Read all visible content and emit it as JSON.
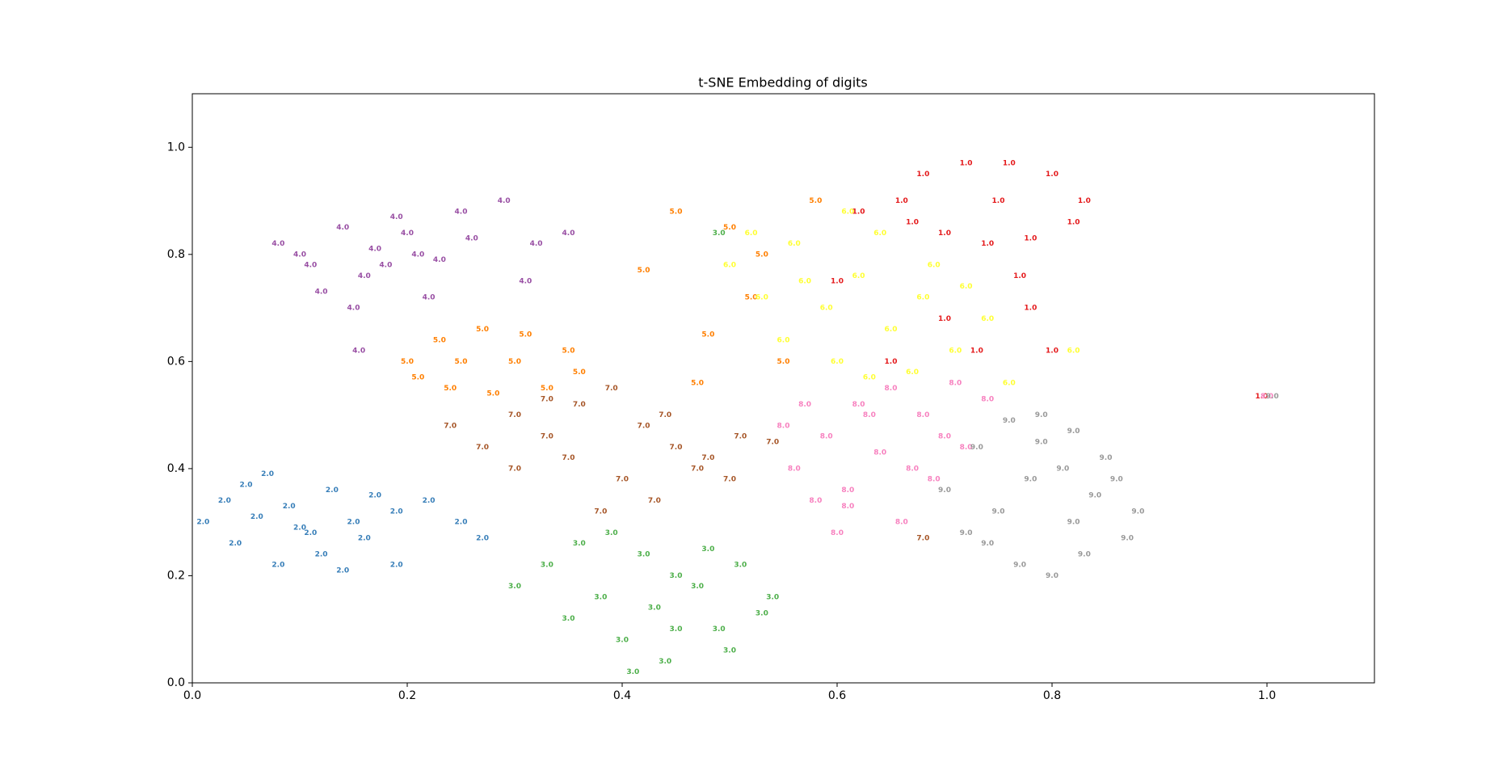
{
  "chart_data": {
    "type": "scatter",
    "title": "t-SNE Embedding of digits",
    "xlim": [
      0,
      1.1
    ],
    "ylim": [
      0,
      1.1
    ],
    "xticks": [
      {
        "value": 0,
        "label": "0.0"
      },
      {
        "value": 0.2,
        "label": "0.2"
      },
      {
        "value": 0.4,
        "label": "0.4"
      },
      {
        "value": 0.6,
        "label": "0.6"
      },
      {
        "value": 0.8,
        "label": "0.8"
      },
      {
        "value": 1,
        "label": "1.0"
      }
    ],
    "yticks": [
      {
        "value": 0,
        "label": "0.0"
      },
      {
        "value": 0.2,
        "label": "0.2"
      },
      {
        "value": 0.4,
        "label": "0.4"
      },
      {
        "value": 0.6,
        "label": "0.6"
      },
      {
        "value": 0.8,
        "label": "0.8"
      },
      {
        "value": 1,
        "label": "1.0"
      }
    ],
    "grid": false,
    "series": [
      {
        "label": "4.0",
        "color": "#984ea3",
        "x": [
          0.08,
          0.11,
          0.14,
          0.17,
          0.2,
          0.23,
          0.26,
          0.12,
          0.16,
          0.19,
          0.22,
          0.25,
          0.1,
          0.15,
          0.29,
          0.32,
          0.35,
          0.18,
          0.21,
          0.31,
          0.155
        ],
        "y": [
          0.82,
          0.78,
          0.85,
          0.81,
          0.84,
          0.79,
          0.83,
          0.73,
          0.76,
          0.87,
          0.72,
          0.88,
          0.8,
          0.7,
          0.9,
          0.82,
          0.84,
          0.78,
          0.8,
          0.75,
          0.62
        ]
      },
      {
        "label": "5.0",
        "color": "#ff7f00",
        "x": [
          0.2,
          0.23,
          0.27,
          0.31,
          0.35,
          0.36,
          0.33,
          0.28,
          0.24,
          0.21,
          0.3,
          0.25,
          0.45,
          0.48,
          0.52,
          0.55,
          0.5,
          0.47,
          0.53,
          0.42,
          0.58
        ],
        "y": [
          0.6,
          0.64,
          0.66,
          0.65,
          0.62,
          0.58,
          0.55,
          0.54,
          0.55,
          0.57,
          0.6,
          0.6,
          0.88,
          0.65,
          0.72,
          0.6,
          0.85,
          0.56,
          0.8,
          0.77,
          0.9
        ]
      },
      {
        "label": "6.0",
        "color": "#ffff33",
        "x": [
          0.5,
          0.53,
          0.56,
          0.59,
          0.62,
          0.65,
          0.68,
          0.71,
          0.55,
          0.6,
          0.64,
          0.69,
          0.74,
          0.52,
          0.57,
          0.63,
          0.67,
          0.72,
          0.76,
          0.61,
          0.82
        ],
        "y": [
          0.78,
          0.72,
          0.82,
          0.7,
          0.76,
          0.66,
          0.72,
          0.62,
          0.64,
          0.6,
          0.84,
          0.78,
          0.68,
          0.84,
          0.75,
          0.57,
          0.58,
          0.74,
          0.56,
          0.88,
          0.62
        ]
      },
      {
        "label": "1.0",
        "color": "#e41a1c",
        "x": [
          0.66,
          0.68,
          0.72,
          0.76,
          0.8,
          0.83,
          0.82,
          0.78,
          0.74,
          0.7,
          0.67,
          0.75,
          0.62,
          0.65,
          0.7,
          0.78,
          0.6,
          0.73,
          0.77,
          0.8,
          0.995
        ],
        "y": [
          0.9,
          0.95,
          0.97,
          0.97,
          0.95,
          0.9,
          0.86,
          0.83,
          0.82,
          0.84,
          0.86,
          0.9,
          0.88,
          0.6,
          0.68,
          0.7,
          0.75,
          0.62,
          0.76,
          0.62,
          0.535
        ]
      },
      {
        "label": "7.0",
        "color": "#a65628",
        "x": [
          0.24,
          0.27,
          0.3,
          0.33,
          0.36,
          0.39,
          0.42,
          0.45,
          0.48,
          0.51,
          0.54,
          0.3,
          0.35,
          0.4,
          0.44,
          0.5,
          0.38,
          0.43,
          0.47,
          0.33,
          0.68
        ],
        "y": [
          0.48,
          0.44,
          0.5,
          0.46,
          0.52,
          0.55,
          0.48,
          0.44,
          0.42,
          0.46,
          0.45,
          0.4,
          0.42,
          0.38,
          0.5,
          0.38,
          0.32,
          0.34,
          0.4,
          0.53,
          0.27
        ]
      },
      {
        "label": "2.0",
        "color": "#377eb8",
        "x": [
          0.01,
          0.03,
          0.05,
          0.07,
          0.09,
          0.11,
          0.13,
          0.15,
          0.17,
          0.19,
          0.22,
          0.25,
          0.27,
          0.04,
          0.08,
          0.12,
          0.16,
          0.06,
          0.1,
          0.14,
          0.19
        ],
        "y": [
          0.3,
          0.34,
          0.37,
          0.39,
          0.33,
          0.28,
          0.36,
          0.3,
          0.35,
          0.32,
          0.34,
          0.3,
          0.27,
          0.26,
          0.22,
          0.24,
          0.27,
          0.31,
          0.29,
          0.21,
          0.22
        ]
      },
      {
        "label": "3.0",
        "color": "#4daf4a",
        "x": [
          0.3,
          0.33,
          0.36,
          0.39,
          0.42,
          0.45,
          0.48,
          0.51,
          0.54,
          0.35,
          0.4,
          0.44,
          0.49,
          0.53,
          0.38,
          0.43,
          0.47,
          0.41,
          0.5,
          0.45,
          0.49
        ],
        "y": [
          0.18,
          0.22,
          0.26,
          0.28,
          0.24,
          0.2,
          0.25,
          0.22,
          0.16,
          0.12,
          0.08,
          0.04,
          0.1,
          0.13,
          0.16,
          0.14,
          0.18,
          0.02,
          0.06,
          0.1,
          0.84
        ]
      },
      {
        "label": "8.0",
        "color": "#f781bf",
        "x": [
          0.56,
          0.59,
          0.62,
          0.65,
          0.68,
          0.71,
          0.74,
          0.58,
          0.61,
          0.64,
          0.67,
          0.7,
          0.55,
          0.6,
          0.66,
          0.72,
          0.63,
          0.69,
          0.57,
          0.61,
          1.0
        ],
        "y": [
          0.4,
          0.46,
          0.52,
          0.55,
          0.5,
          0.56,
          0.53,
          0.34,
          0.36,
          0.43,
          0.4,
          0.46,
          0.48,
          0.28,
          0.3,
          0.44,
          0.5,
          0.38,
          0.52,
          0.33,
          0.535
        ]
      },
      {
        "label": "9.0",
        "color": "#999999",
        "x": [
          0.7,
          0.73,
          0.76,
          0.79,
          0.82,
          0.85,
          0.88,
          0.72,
          0.75,
          0.78,
          0.81,
          0.84,
          0.87,
          0.77,
          0.8,
          0.83,
          0.74,
          0.86,
          0.79,
          0.82,
          1.005
        ],
        "y": [
          0.36,
          0.44,
          0.49,
          0.5,
          0.47,
          0.42,
          0.32,
          0.28,
          0.32,
          0.38,
          0.4,
          0.35,
          0.27,
          0.22,
          0.2,
          0.24,
          0.26,
          0.38,
          0.45,
          0.3,
          0.535
        ]
      }
    ]
  }
}
